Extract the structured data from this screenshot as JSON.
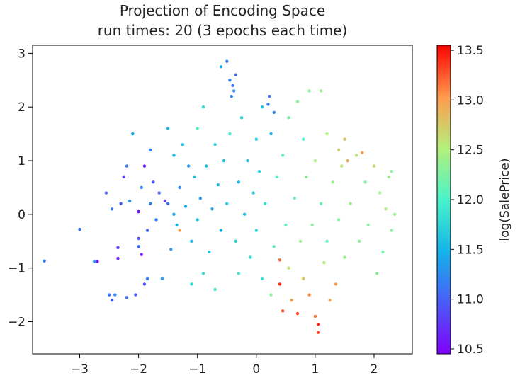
{
  "chart_data": {
    "type": "scatter",
    "title": "Projection of Encoding Space",
    "subtitle": "run times: 20 (3 epochs each time)",
    "xlabel": "",
    "ylabel": "",
    "colorbar_label": "log(SalePrice)",
    "colormap": "rainbow",
    "xlim": [
      -3.8,
      2.65
    ],
    "ylim": [
      -2.6,
      3.15
    ],
    "x_ticks": [
      -3,
      -2,
      -1,
      0,
      1,
      2
    ],
    "y_ticks": [
      -2,
      -1,
      0,
      1,
      2,
      3
    ],
    "color_range": [
      10.45,
      13.55
    ],
    "colorbar_ticks": [
      "10.5",
      "11.0",
      "11.5",
      "12.0",
      "12.5",
      "13.0",
      "13.5"
    ],
    "colorbar_tick_values": [
      10.5,
      11.0,
      11.5,
      12.0,
      12.5,
      13.0,
      13.5
    ],
    "marker_size": "small",
    "grid": false,
    "clusters_note_only_for_script": null,
    "points": [
      [
        -3.6,
        -0.87,
        11.2
      ],
      [
        -3.0,
        -0.28,
        11.1
      ],
      [
        -2.7,
        -0.88,
        10.6
      ],
      [
        -2.75,
        -0.88,
        11.3
      ],
      [
        -2.55,
        0.4,
        11.0
      ],
      [
        -2.45,
        0.1,
        11.1
      ],
      [
        -2.5,
        -1.5,
        11.1
      ],
      [
        -2.45,
        -1.6,
        11.0
      ],
      [
        -2.4,
        -1.5,
        11.2
      ],
      [
        -2.35,
        -0.62,
        10.8
      ],
      [
        -2.35,
        -0.82,
        10.6
      ],
      [
        -2.3,
        0.2,
        11.0
      ],
      [
        -2.25,
        0.7,
        10.8
      ],
      [
        -2.2,
        0.9,
        11.1
      ],
      [
        -2.2,
        -1.55,
        11.1
      ],
      [
        -2.15,
        0.25,
        11.3
      ],
      [
        -2.1,
        1.5,
        11.4
      ],
      [
        -2.05,
        -1.5,
        11.0
      ],
      [
        -2.0,
        0.05,
        10.5
      ],
      [
        -2.0,
        -0.45,
        10.9
      ],
      [
        -2.0,
        -0.6,
        11.1
      ],
      [
        -1.95,
        -0.75,
        10.6
      ],
      [
        -1.95,
        0.5,
        11.2
      ],
      [
        -1.9,
        0.9,
        10.6
      ],
      [
        -1.9,
        -1.3,
        11.0
      ],
      [
        -1.85,
        -0.3,
        11.0
      ],
      [
        -1.85,
        -1.2,
        11.2
      ],
      [
        -1.8,
        0.2,
        11.2
      ],
      [
        -1.8,
        1.2,
        11.2
      ],
      [
        -1.75,
        0.6,
        11.0
      ],
      [
        -1.7,
        -0.1,
        11.2
      ],
      [
        -1.65,
        0.4,
        11.0
      ],
      [
        -1.6,
        -1.2,
        11.3
      ],
      [
        -1.55,
        0.25,
        10.8
      ],
      [
        -1.5,
        0.2,
        11.1
      ],
      [
        -1.5,
        1.6,
        11.5
      ],
      [
        -1.45,
        -0.65,
        11.3
      ],
      [
        -1.4,
        0.0,
        11.4
      ],
      [
        -1.4,
        1.1,
        11.5
      ],
      [
        -1.35,
        -0.2,
        11.5
      ],
      [
        -1.3,
        0.5,
        11.2
      ],
      [
        -1.3,
        -0.3,
        13.0
      ],
      [
        -1.25,
        1.3,
        11.6
      ],
      [
        -1.2,
        0.15,
        11.4
      ],
      [
        -1.15,
        0.9,
        11.3
      ],
      [
        -1.1,
        -0.5,
        11.5
      ],
      [
        -1.1,
        -1.3,
        11.8
      ],
      [
        -1.05,
        0.7,
        11.6
      ],
      [
        -1.0,
        1.6,
        12.0
      ],
      [
        -1.0,
        -0.1,
        11.6
      ],
      [
        -0.95,
        0.3,
        11.3
      ],
      [
        -0.9,
        2.0,
        11.8
      ],
      [
        -0.9,
        -1.1,
        11.8
      ],
      [
        -0.85,
        0.9,
        11.5
      ],
      [
        -0.8,
        -0.7,
        11.6
      ],
      [
        -0.75,
        0.1,
        11.4
      ],
      [
        -0.7,
        1.3,
        11.7
      ],
      [
        -0.7,
        -1.4,
        11.9
      ],
      [
        -0.65,
        0.55,
        11.6
      ],
      [
        -0.6,
        2.75,
        11.4
      ],
      [
        -0.6,
        -0.3,
        11.5
      ],
      [
        -0.55,
        1.0,
        11.6
      ],
      [
        -0.5,
        2.85,
        11.2
      ],
      [
        -0.5,
        0.2,
        11.7
      ],
      [
        -0.45,
        2.5,
        11.2
      ],
      [
        -0.45,
        1.5,
        11.9
      ],
      [
        -0.42,
        2.2,
        11.2
      ],
      [
        -0.4,
        2.4,
        11.1
      ],
      [
        -0.38,
        2.3,
        11.2
      ],
      [
        -0.35,
        2.6,
        11.1
      ],
      [
        -0.35,
        -0.5,
        11.7
      ],
      [
        -0.3,
        0.6,
        11.5
      ],
      [
        -0.3,
        -1.1,
        11.9
      ],
      [
        -0.25,
        1.8,
        11.8
      ],
      [
        -0.2,
        0.0,
        11.6
      ],
      [
        -0.15,
        1.0,
        11.6
      ],
      [
        -0.1,
        -0.8,
        11.8
      ],
      [
        -0.05,
        0.4,
        11.7
      ],
      [
        0.0,
        1.4,
        11.7
      ],
      [
        0.0,
        -0.3,
        11.8
      ],
      [
        0.05,
        0.8,
        11.7
      ],
      [
        0.1,
        2.0,
        11.6
      ],
      [
        0.1,
        -1.2,
        11.9
      ],
      [
        0.15,
        0.2,
        11.9
      ],
      [
        0.2,
        2.05,
        11.2
      ],
      [
        0.22,
        2.2,
        11.1
      ],
      [
        0.25,
        1.5,
        11.5
      ],
      [
        0.25,
        -1.5,
        12.3
      ],
      [
        0.3,
        1.9,
        11.2
      ],
      [
        0.3,
        -0.6,
        12.1
      ],
      [
        0.35,
        0.7,
        12.0
      ],
      [
        0.4,
        -0.85,
        13.2
      ],
      [
        0.4,
        -1.3,
        13.4
      ],
      [
        0.45,
        -1.8,
        13.3
      ],
      [
        0.45,
        1.1,
        12.1
      ],
      [
        0.5,
        -0.2,
        12.1
      ],
      [
        0.55,
        1.8,
        12.2
      ],
      [
        0.55,
        -1.0,
        12.6
      ],
      [
        0.6,
        -1.6,
        13.0
      ],
      [
        0.65,
        0.3,
        12.2
      ],
      [
        0.7,
        -1.85,
        13.3
      ],
      [
        0.7,
        2.1,
        12.3
      ],
      [
        0.75,
        -0.5,
        12.4
      ],
      [
        0.8,
        1.4,
        12.0
      ],
      [
        0.8,
        -1.2,
        12.8
      ],
      [
        0.85,
        0.7,
        12.3
      ],
      [
        0.9,
        2.3,
        12.3
      ],
      [
        0.9,
        -1.5,
        13.1
      ],
      [
        0.95,
        -0.2,
        12.3
      ],
      [
        1.0,
        -1.9,
        13.2
      ],
      [
        1.0,
        1.0,
        12.5
      ],
      [
        1.05,
        -2.2,
        13.3
      ],
      [
        1.05,
        -2.05,
        13.4
      ],
      [
        1.1,
        2.3,
        12.4
      ],
      [
        1.1,
        0.2,
        12.2
      ],
      [
        1.15,
        -0.9,
        12.5
      ],
      [
        1.2,
        1.5,
        12.5
      ],
      [
        1.2,
        -0.5,
        12.1
      ],
      [
        1.25,
        -1.6,
        12.9
      ],
      [
        1.3,
        0.6,
        12.4
      ],
      [
        1.35,
        -1.3,
        13.0
      ],
      [
        1.4,
        1.2,
        12.7
      ],
      [
        1.4,
        -0.1,
        12.3
      ],
      [
        1.45,
        0.9,
        12.6
      ],
      [
        1.5,
        1.4,
        12.8
      ],
      [
        1.5,
        -0.8,
        12.4
      ],
      [
        1.55,
        1.0,
        12.9
      ],
      [
        1.6,
        0.2,
        12.4
      ],
      [
        1.7,
        1.1,
        12.6
      ],
      [
        1.75,
        -0.5,
        12.3
      ],
      [
        1.8,
        1.15,
        13.0
      ],
      [
        1.85,
        0.6,
        12.3
      ],
      [
        1.9,
        -0.2,
        12.3
      ],
      [
        2.0,
        0.9,
        12.7
      ],
      [
        2.05,
        -1.1,
        12.3
      ],
      [
        2.1,
        0.4,
        12.4
      ],
      [
        2.15,
        -0.7,
        12.2
      ],
      [
        2.2,
        0.1,
        12.5
      ],
      [
        2.25,
        0.7,
        12.4
      ],
      [
        2.3,
        -0.3,
        12.3
      ],
      [
        2.35,
        0.0,
        12.4
      ],
      [
        2.3,
        0.8,
        12.3
      ]
    ]
  }
}
